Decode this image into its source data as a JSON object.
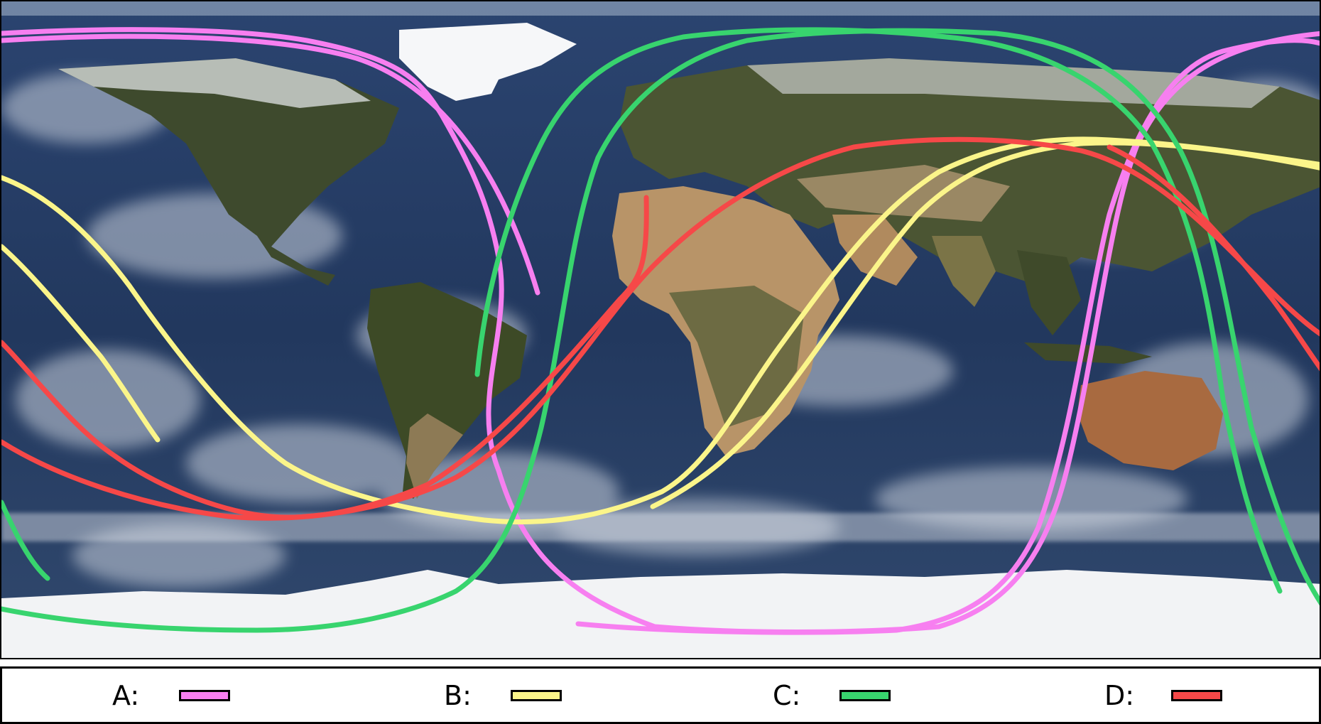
{
  "map": {
    "colors": {
      "ocean_deep": "#1c3357",
      "ocean_mid": "#2e4a74",
      "cloud": "#d9dde6",
      "ice": "#f2f4f7",
      "land_green": "#3f4a2e",
      "land_desert": "#b8946a",
      "land_tan": "#8c7a58"
    }
  },
  "legend": {
    "items": [
      {
        "label": "A:",
        "color": "#f77ff0"
      },
      {
        "label": "B:",
        "color": "#fbf58a"
      },
      {
        "label": "C:",
        "color": "#38d46e"
      },
      {
        "label": "D:",
        "color": "#f64848"
      }
    ]
  },
  "tracks": [
    {
      "id": "A",
      "color": "#f77ff0"
    },
    {
      "id": "B",
      "color": "#fbf58a"
    },
    {
      "id": "C",
      "color": "#38d46e"
    },
    {
      "id": "D",
      "color": "#f64848"
    }
  ]
}
